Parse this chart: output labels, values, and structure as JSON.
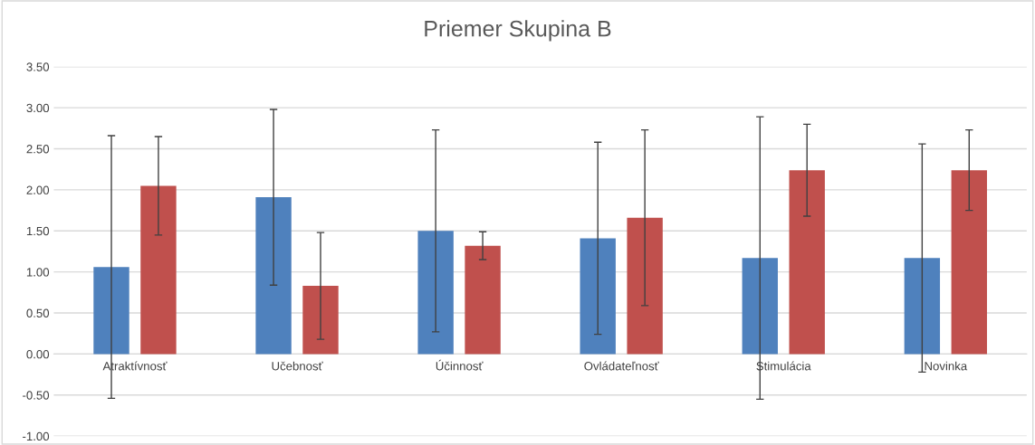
{
  "chart_data": {
    "type": "bar",
    "title": "Priemer Skupina B",
    "categories": [
      "Atraktívnosť",
      "Učebnosť",
      "Účinnosť",
      "Ovládateľnosť",
      "Stimulácia",
      "Novinka"
    ],
    "series": [
      {
        "color": "#4f81bd",
        "values": [
          1.06,
          1.91,
          1.5,
          1.41,
          1.17,
          1.17
        ],
        "errors": [
          1.6,
          1.07,
          1.23,
          1.17,
          1.72,
          1.39
        ]
      },
      {
        "color": "#c0504d",
        "values": [
          2.05,
          0.83,
          1.32,
          1.66,
          2.24,
          2.24
        ],
        "errors": [
          0.6,
          0.65,
          0.17,
          1.07,
          0.56,
          0.49
        ]
      }
    ],
    "ylim": [
      -1,
      3.5
    ],
    "yticks": [
      {
        "value": -1,
        "label": "-1.00"
      },
      {
        "value": -0.5,
        "label": "-0.50"
      },
      {
        "value": 0,
        "label": "0.00"
      },
      {
        "value": 0.5,
        "label": "0.50"
      },
      {
        "value": 1,
        "label": "1.00"
      },
      {
        "value": 1.5,
        "label": "1.50"
      },
      {
        "value": 2,
        "label": "2.00"
      },
      {
        "value": 2.5,
        "label": "2.50"
      },
      {
        "value": 3,
        "label": "3.00"
      },
      {
        "value": 3.5,
        "label": "3.50"
      }
    ],
    "grid": "y"
  }
}
